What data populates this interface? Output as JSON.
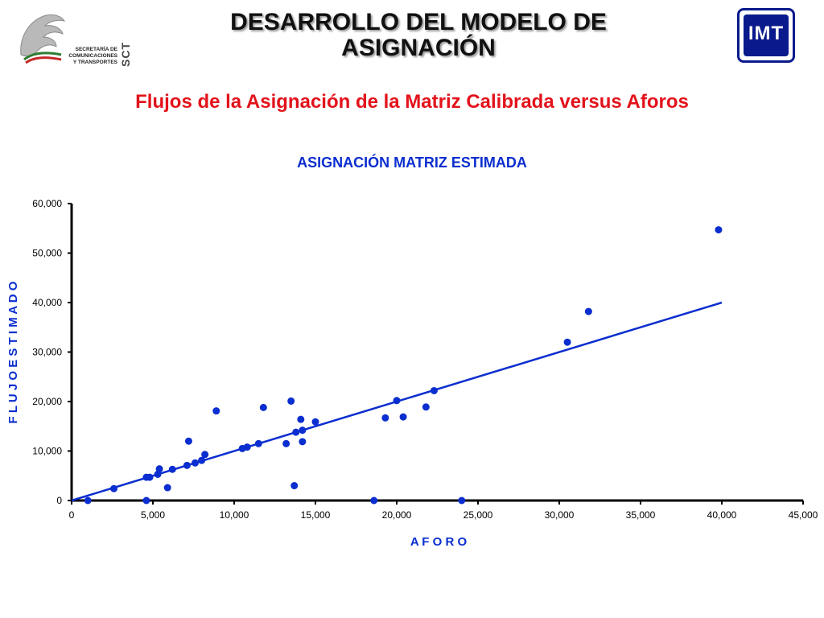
{
  "header": {
    "title": "DESARROLLO DEL MODELO DE ASIGNACIÓN",
    "subtitle": "Flujos de la Asignación de la Matriz Calibrada versus Aforos"
  },
  "logo_left": {
    "lines": [
      "SECRETARÍA DE",
      "COMUNICACIONES",
      "Y TRANSPORTES"
    ],
    "abbr": "SCT"
  },
  "logo_right": {
    "text": "IMT"
  },
  "colors": {
    "title": "#111111",
    "subtitle": "#e3121b",
    "chart_blue": "#0a2ecf",
    "logo_blue": "#0a1a8c"
  },
  "chart_data": {
    "type": "scatter",
    "title": "ASIGNACIÓN  MATRIZ  ESTIMADA",
    "xlabel": "A F O R O",
    "ylabel": "F L U J O   E S T I M A D O",
    "xlim": [
      0,
      45000
    ],
    "ylim": [
      0,
      60000
    ],
    "xticks": [
      "0",
      "5,000",
      "10,000",
      "15,000",
      "20,000",
      "25,000",
      "30,000",
      "35,000",
      "40,000",
      "45,000"
    ],
    "yticks": [
      "0",
      "10,000",
      "20,000",
      "30,000",
      "40,000",
      "50,000",
      "60,000"
    ],
    "grid": false,
    "legend": "none",
    "points": [
      {
        "x": 1000,
        "y": 0
      },
      {
        "x": 2600,
        "y": 2400
      },
      {
        "x": 4600,
        "y": 4700
      },
      {
        "x": 4800,
        "y": 4700
      },
      {
        "x": 4600,
        "y": 0
      },
      {
        "x": 5300,
        "y": 5300
      },
      {
        "x": 5400,
        "y": 6400
      },
      {
        "x": 5900,
        "y": 2600
      },
      {
        "x": 6200,
        "y": 6300
      },
      {
        "x": 7100,
        "y": 7100
      },
      {
        "x": 7200,
        "y": 12000
      },
      {
        "x": 7600,
        "y": 7600
      },
      {
        "x": 8000,
        "y": 8100
      },
      {
        "x": 8200,
        "y": 9300
      },
      {
        "x": 8900,
        "y": 18100
      },
      {
        "x": 10500,
        "y": 10500
      },
      {
        "x": 10800,
        "y": 10800
      },
      {
        "x": 11500,
        "y": 11500
      },
      {
        "x": 11800,
        "y": 18800
      },
      {
        "x": 13200,
        "y": 11500
      },
      {
        "x": 13500,
        "y": 20100
      },
      {
        "x": 13700,
        "y": 3000
      },
      {
        "x": 13800,
        "y": 13800
      },
      {
        "x": 14100,
        "y": 16400
      },
      {
        "x": 14200,
        "y": 14200
      },
      {
        "x": 14200,
        "y": 11900
      },
      {
        "x": 15000,
        "y": 15900
      },
      {
        "x": 18600,
        "y": 0
      },
      {
        "x": 19300,
        "y": 16700
      },
      {
        "x": 20000,
        "y": 20200
      },
      {
        "x": 20400,
        "y": 16900
      },
      {
        "x": 21800,
        "y": 18900
      },
      {
        "x": 22300,
        "y": 22200
      },
      {
        "x": 24000,
        "y": 0
      },
      {
        "x": 30500,
        "y": 32000
      },
      {
        "x": 31800,
        "y": 38200
      },
      {
        "x": 39800,
        "y": 54700
      }
    ],
    "fit_line": {
      "x": [
        0,
        40000
      ],
      "y": [
        0,
        40000
      ]
    }
  }
}
